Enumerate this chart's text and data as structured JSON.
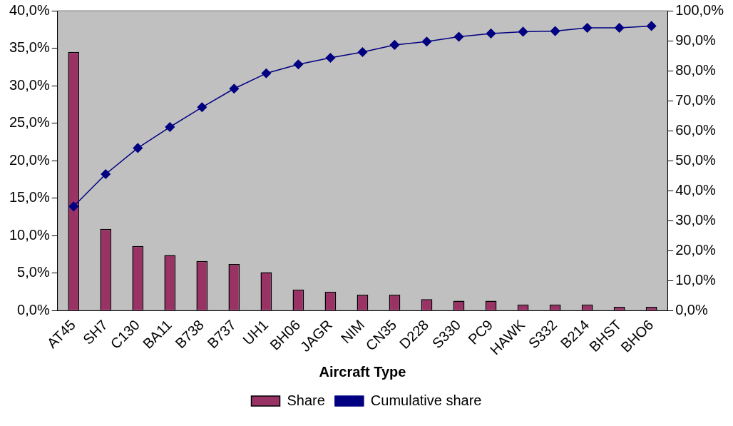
{
  "chart_data": {
    "type": "bar",
    "xlabel": "Aircraft Type",
    "categories": [
      "AT45",
      "SH7",
      "C130",
      "BA11",
      "B738",
      "B737",
      "UH1",
      "BH06",
      "JAGR",
      "NIM",
      "CN35",
      "D228",
      "S330",
      "PC9",
      "HAWK",
      "S332",
      "B214",
      "BHST",
      "BHO6"
    ],
    "series": [
      {
        "name": "Share",
        "color": "#993366",
        "values": [
          34.5,
          10.9,
          8.6,
          7.4,
          6.6,
          6.2,
          5.1,
          2.8,
          2.5,
          2.1,
          2.1,
          1.5,
          1.3,
          1.3,
          0.8,
          0.8,
          0.8,
          0.5,
          0.5
        ]
      },
      {
        "name": "Cumulative share",
        "type": "line",
        "axis": "y2",
        "color": "#000080",
        "marker": "diamond",
        "values": [
          34.7,
          45.5,
          54.2,
          61.2,
          67.8,
          74.0,
          79.1,
          82.1,
          84.3,
          86.2,
          88.6,
          89.7,
          91.3,
          92.4,
          93.0,
          93.2,
          94.3,
          94.3,
          94.9
        ]
      }
    ],
    "ylim": [
      0,
      40
    ],
    "yticks": [
      {
        "value": 0,
        "label": "0,0%"
      },
      {
        "value": 5,
        "label": "5,0%"
      },
      {
        "value": 10,
        "label": "10,0%"
      },
      {
        "value": 15,
        "label": "15,0%"
      },
      {
        "value": 20,
        "label": "20,0%"
      },
      {
        "value": 25,
        "label": "25,0%"
      },
      {
        "value": 30,
        "label": "30,0%"
      },
      {
        "value": 35,
        "label": "35,0%"
      },
      {
        "value": 40,
        "label": "40,0%"
      }
    ],
    "y2lim": [
      0,
      100
    ],
    "y2ticks": [
      {
        "value": 0,
        "label": "0,0%"
      },
      {
        "value": 10,
        "label": "10,0%"
      },
      {
        "value": 20,
        "label": "20,0%"
      },
      {
        "value": 30,
        "label": "30,0%"
      },
      {
        "value": 40,
        "label": "40,0%"
      },
      {
        "value": 50,
        "label": "50,0%"
      },
      {
        "value": 60,
        "label": "60,0%"
      },
      {
        "value": 70,
        "label": "70,0%"
      },
      {
        "value": 80,
        "label": "80,0%"
      },
      {
        "value": 90,
        "label": "90,0%"
      },
      {
        "value": 100,
        "label": "100,0%"
      }
    ],
    "grid": false,
    "legend": "bottom"
  }
}
